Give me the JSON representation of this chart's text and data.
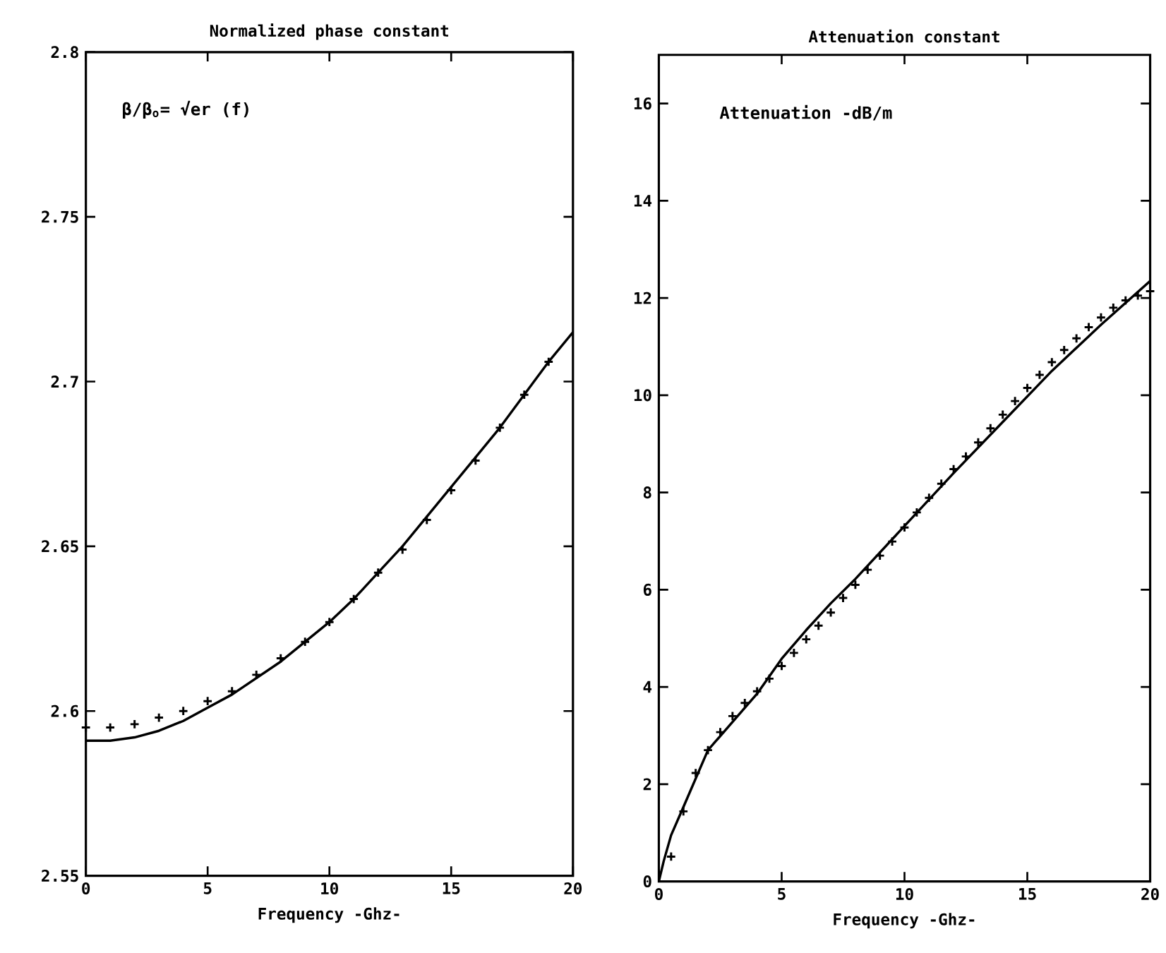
{
  "chart_data": [
    {
      "type": "line",
      "title": "Normalized phase constant",
      "xlabel": "Frequency -Ghz-",
      "annotations": [
        "β/β$_{o}$= √er (f)"
      ],
      "xlim": [
        0,
        20
      ],
      "ylim": [
        2.55,
        2.8
      ],
      "xticks": [
        0,
        5,
        10,
        15,
        20
      ],
      "yticks": [
        2.55,
        2.6,
        2.65,
        2.7,
        2.75,
        2.8
      ],
      "series": [
        {
          "type": "line",
          "color": "#000000",
          "marker": "none",
          "x": [
            0,
            1,
            2,
            3,
            4,
            5,
            6,
            7,
            8,
            9,
            10,
            11,
            12,
            13,
            14,
            15,
            16,
            17,
            18,
            19,
            20
          ],
          "values": [
            2.591,
            2.591,
            2.592,
            2.594,
            2.597,
            2.601,
            2.605,
            2.61,
            2.615,
            2.621,
            2.627,
            2.634,
            2.642,
            2.65,
            2.659,
            2.668,
            2.677,
            2.686,
            2.696,
            2.706,
            2.715
          ]
        },
        {
          "type": "scatter",
          "color": "#000000",
          "marker": "cross",
          "x": [
            0,
            1,
            2,
            3,
            4,
            5,
            6,
            7,
            8,
            9,
            10,
            11,
            12,
            13,
            14,
            15,
            16,
            17,
            18,
            19
          ],
          "values": [
            2.595,
            2.595,
            2.596,
            2.598,
            2.6,
            2.603,
            2.606,
            2.611,
            2.616,
            2.621,
            2.627,
            2.634,
            2.642,
            2.649,
            2.658,
            2.667,
            2.676,
            2.686,
            2.696,
            2.706
          ]
        }
      ]
    },
    {
      "type": "line",
      "title": "Attenuation constant",
      "xlabel": "Frequency -Ghz-",
      "annotations": [
        "Attenuation -dB/m"
      ],
      "xlim": [
        0,
        20
      ],
      "ylim": [
        0,
        17
      ],
      "xticks": [
        0,
        5,
        10,
        15,
        20
      ],
      "yticks": [
        0,
        2,
        4,
        6,
        8,
        10,
        12,
        14,
        16
      ],
      "series": [
        {
          "type": "line",
          "color": "#000000",
          "marker": "none",
          "x": [
            0,
            0.2,
            0.5,
            1,
            2,
            3,
            4,
            5,
            6,
            7,
            8,
            10,
            12,
            14,
            16,
            18,
            20
          ],
          "values": [
            0,
            0.42,
            0.95,
            1.53,
            2.7,
            3.28,
            3.86,
            4.58,
            5.17,
            5.72,
            6.22,
            7.31,
            8.4,
            9.45,
            10.5,
            11.45,
            12.35
          ]
        },
        {
          "type": "scatter",
          "color": "#000000",
          "marker": "cross",
          "x": [
            0.5,
            1,
            1.5,
            2,
            2.5,
            3,
            3.5,
            4,
            4.5,
            5,
            5.5,
            6,
            6.5,
            7,
            7.5,
            8,
            8.5,
            9,
            9.5,
            10,
            10.5,
            11,
            11.5,
            12,
            12.5,
            13,
            13.5,
            14,
            14.5,
            15,
            15.5,
            16,
            16.5,
            17,
            17.5,
            18,
            18.5,
            19,
            19.5,
            20
          ],
          "values": [
            0.51,
            1.44,
            2.23,
            2.7,
            3.07,
            3.4,
            3.67,
            3.91,
            4.17,
            4.43,
            4.7,
            4.98,
            5.26,
            5.53,
            5.83,
            6.1,
            6.41,
            6.7,
            6.99,
            7.28,
            7.59,
            7.89,
            8.18,
            8.48,
            8.74,
            9.03,
            9.32,
            9.6,
            9.88,
            10.15,
            10.42,
            10.68,
            10.93,
            11.17,
            11.4,
            11.6,
            11.8,
            11.95,
            12.05,
            12.14
          ]
        }
      ]
    }
  ]
}
